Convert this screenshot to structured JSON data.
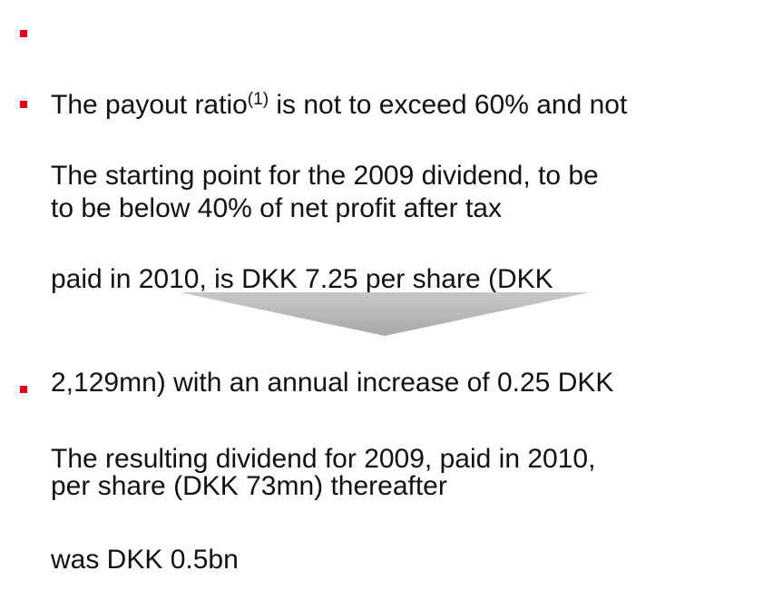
{
  "bullets": [
    {
      "lead": "The payout ratio",
      "footnote": "(1)",
      "lines": [
        " is not to exceed 60% and not",
        "to be below 40% of net profit after tax"
      ]
    },
    {
      "lines": [
        "The starting point for the 2009 dividend, to be",
        "paid in 2010, is DKK 7.25 per share (DKK",
        "2,129mn) with an annual increase of 0.25 DKK",
        "per share (DKK 73mn) thereafter"
      ]
    },
    {
      "lines": [
        "The resulting dividend for 2009, paid in 2010,",
        "was DKK 0.5bn"
      ]
    }
  ]
}
